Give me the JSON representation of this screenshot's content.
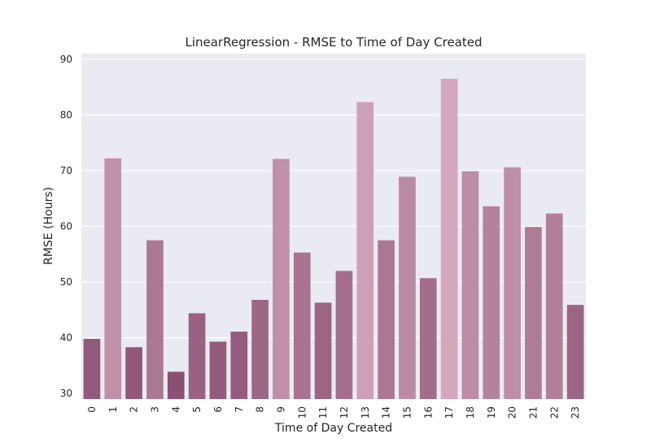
{
  "chart_data": {
    "type": "bar",
    "title": "LinearRegression - RMSE to Time of Day Created",
    "xlabel": "Time of Day Created",
    "ylabel": "RMSE (Hours)",
    "categories": [
      "0",
      "1",
      "2",
      "3",
      "4",
      "5",
      "6",
      "7",
      "8",
      "9",
      "10",
      "11",
      "12",
      "13",
      "14",
      "15",
      "16",
      "17",
      "18",
      "19",
      "20",
      "21",
      "22",
      "23"
    ],
    "values": [
      39.8,
      72.2,
      38.3,
      57.5,
      33.9,
      44.4,
      39.3,
      41.1,
      46.8,
      72.1,
      55.3,
      46.3,
      52.0,
      82.3,
      57.5,
      68.9,
      50.7,
      86.5,
      69.9,
      63.6,
      70.6,
      59.9,
      62.3,
      45.9
    ],
    "ylim": [
      29,
      91
    ],
    "yticks": [
      30,
      40,
      50,
      60,
      70,
      80,
      90
    ],
    "grid": true,
    "legend": "none",
    "colors": {
      "background": "#eaeaf2",
      "grid": "#ffffff",
      "bar_low": "#8a5173",
      "bar_high": "#d4a7bd"
    }
  }
}
